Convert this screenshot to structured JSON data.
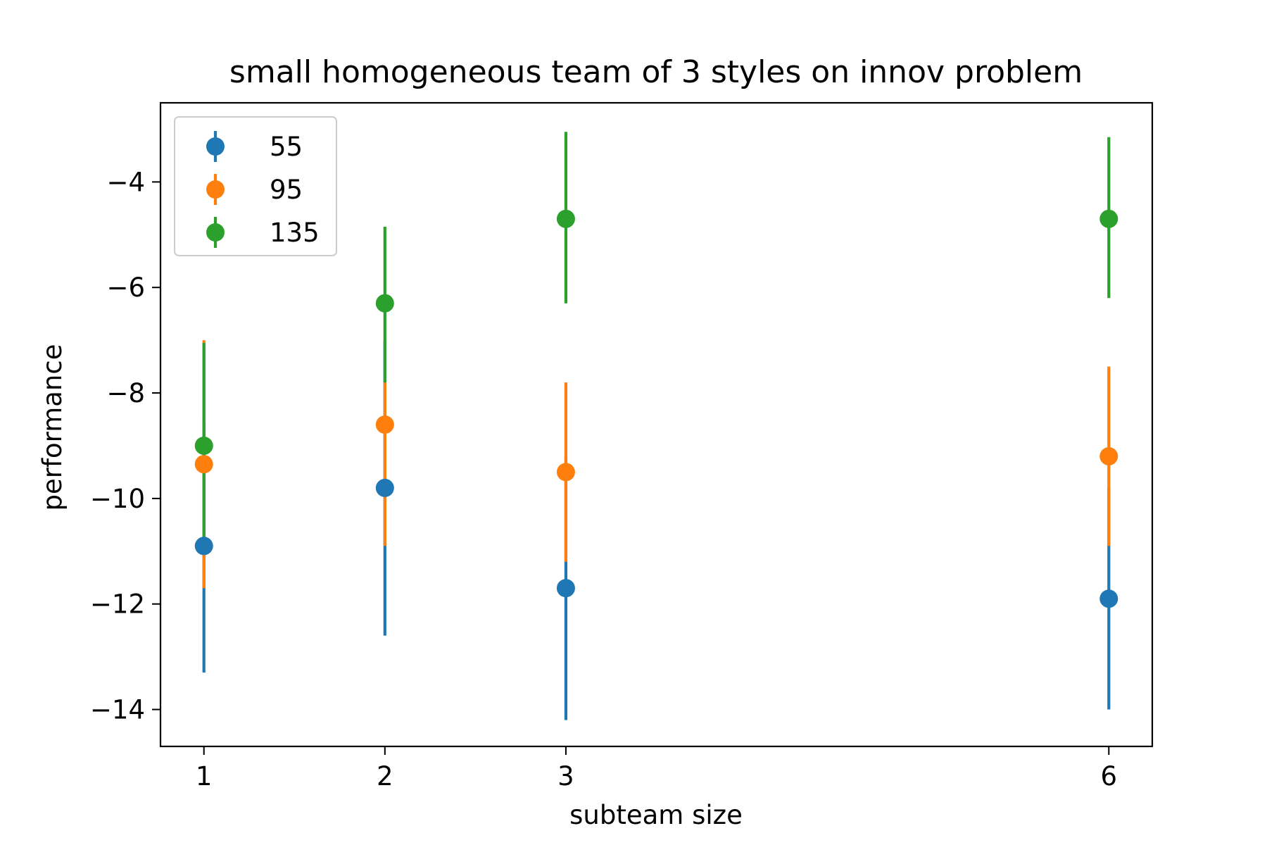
{
  "chart_data": {
    "type": "scatter",
    "title": "small homogeneous team of 3 styles on innov problem",
    "xlabel": "subteam size",
    "ylabel": "performance",
    "x": [
      1,
      2,
      3,
      6
    ],
    "x_tick_labels": [
      "1",
      "2",
      "3",
      "6"
    ],
    "y_ticks": [
      -4,
      -6,
      -8,
      -10,
      -12,
      -14
    ],
    "y_tick_labels": [
      "−4",
      "−6",
      "−8",
      "−10",
      "−12",
      "−14"
    ],
    "xlim": [
      0.76,
      6.24
    ],
    "ylim": [
      -14.7,
      -2.5
    ],
    "grid": false,
    "legend_position": "top-left",
    "series": [
      {
        "name": "55",
        "color": "#1f77b4",
        "values": [
          -10.9,
          -9.8,
          -11.7,
          -11.9
        ],
        "err_low": [
          -13.3,
          -12.6,
          -14.2,
          -14.0
        ],
        "err_high": [
          -8.5,
          -7.0,
          -9.2,
          -9.8
        ]
      },
      {
        "name": "95",
        "color": "#ff7f0e",
        "values": [
          -9.35,
          -8.6,
          -9.5,
          -9.2
        ],
        "err_low": [
          -11.7,
          -10.9,
          -11.2,
          -10.9
        ],
        "err_high": [
          -7.0,
          -7.8,
          -7.8,
          -7.5
        ]
      },
      {
        "name": "135",
        "color": "#2ca02c",
        "values": [
          -9.0,
          -6.3,
          -4.7,
          -4.7
        ],
        "err_low": [
          -10.9,
          -7.8,
          -6.3,
          -6.2
        ],
        "err_high": [
          -7.05,
          -4.85,
          -3.05,
          -3.15
        ]
      }
    ]
  }
}
